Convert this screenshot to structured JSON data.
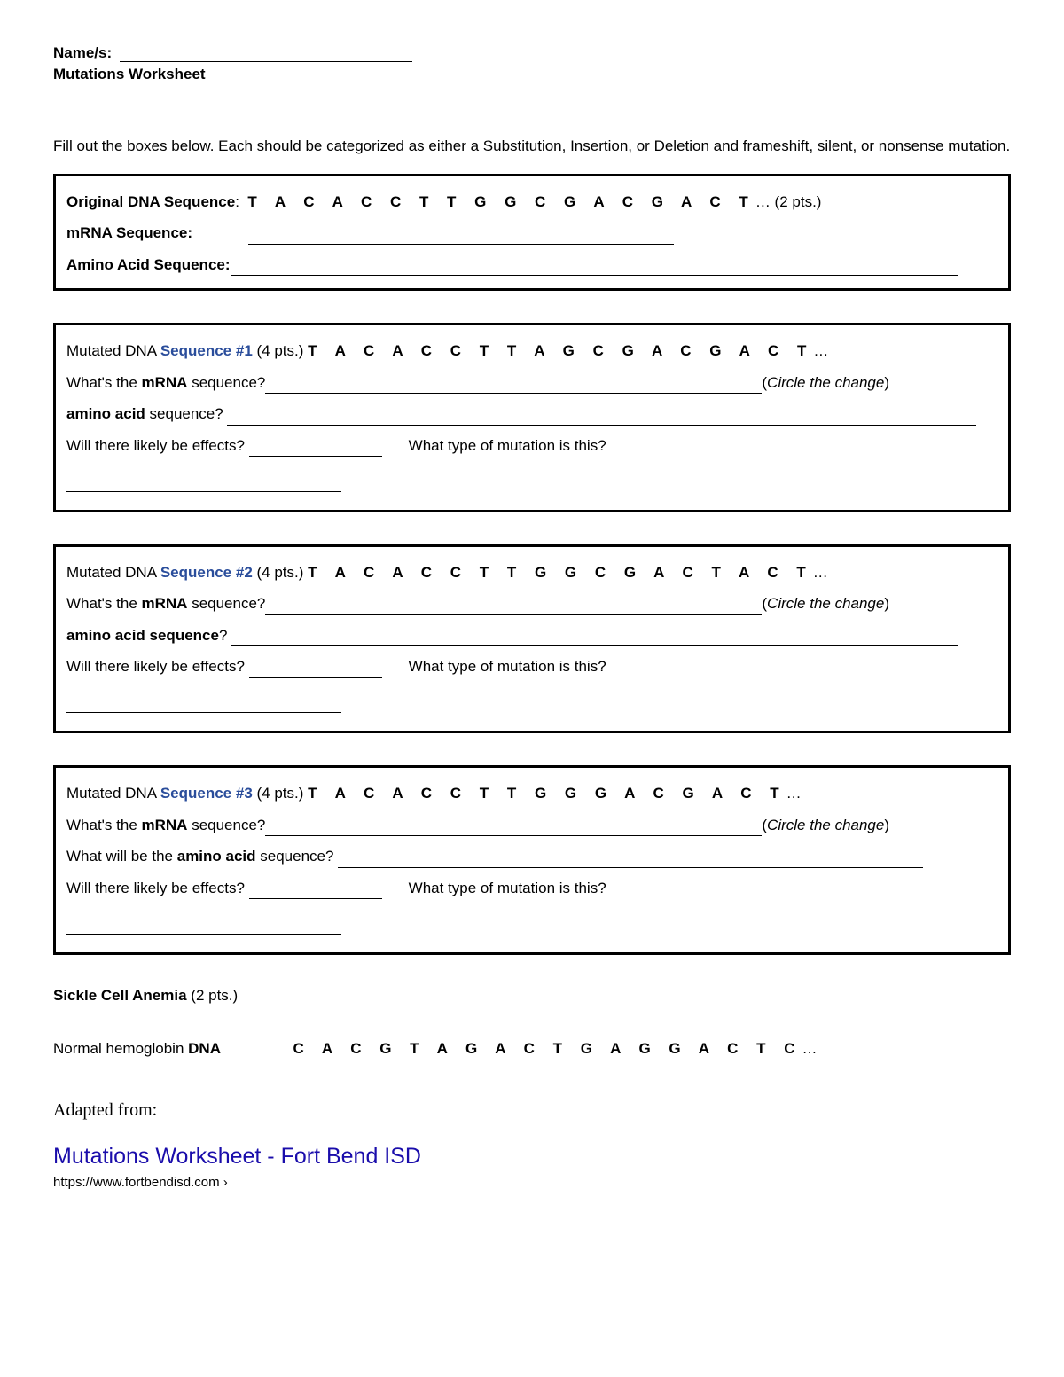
{
  "header": {
    "name_label": "Name/s:",
    "title": "Mutations Worksheet"
  },
  "instructions": "Fill out the boxes below. Each should be categorized as either a Substitution, Insertion, or Deletion and frameshift, silent, or nonsense mutation.",
  "original_box": {
    "label": "Original DNA Sequence",
    "sequence": "TACACCTTGGCGACGACT",
    "points": "(2 pts.)",
    "mrna_label": "mRNA Sequence:",
    "aa_label": "Amino Acid Sequence:"
  },
  "mutations": [
    {
      "prefix": "Mutated DNA ",
      "seq_label": "Sequence #1",
      "points": " (4 pts.) ",
      "sequence": "TACACCTTAGCGACGACT",
      "mrna_q_a": "What's the ",
      "mrna_q_b": "mRNA",
      "mrna_q_c": " sequence?",
      "circle": "Circle the change",
      "aa_a": "amino acid",
      "aa_b": " sequence? ",
      "effects_q": "Will there likely be effects? ",
      "type_q": "What type of mutation is this?"
    },
    {
      "prefix": "Mutated DNA ",
      "seq_label": "Sequence #2",
      "points": " (4 pts.) ",
      "sequence": "TACACCTTGGCGACTACT",
      "mrna_q_a": "What's the ",
      "mrna_q_b": "mRNA",
      "mrna_q_c": " sequence?",
      "circle": "Circle the change",
      "aa_a": "amino acid sequence",
      "aa_b": "? ",
      "effects_q": "Will there likely be effects? ",
      "type_q": "What type of mutation is this?"
    },
    {
      "prefix": "Mutated DNA ",
      "seq_label": "Sequence #3",
      "points": " (4 pts.) ",
      "sequence": "TACACCTTGGGACGACT",
      "mrna_q_a": "What's the ",
      "mrna_q_b": "mRNA",
      "mrna_q_c": " sequence?",
      "circle": "Circle the change",
      "aa_prefix": "What will be the ",
      "aa_a": "amino acid",
      "aa_b": " sequence? ",
      "effects_q": "Will there likely be effects? ",
      "type_q": "What type of mutation is this?"
    }
  ],
  "sickle": {
    "title_a": "Sickle Cell Anemia",
    "title_b": " (2 pts.)",
    "hemo_a": "Normal hemoglobin ",
    "hemo_b": "DNA",
    "sequence": "CACGTAGACTGAGGACTC"
  },
  "source": {
    "adapted": "Adapted from:",
    "title": "Mutations Worksheet - Fort Bend ISD",
    "url": "https://www.fortbendisd.com ›"
  }
}
